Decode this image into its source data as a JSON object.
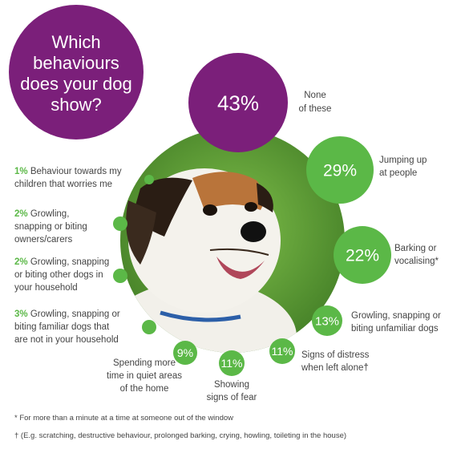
{
  "title_lines": [
    "Which",
    "behaviours",
    "does your dog",
    "show?"
  ],
  "colors": {
    "purple": "#7b1f7a",
    "green": "#5bb847",
    "text": "#444444",
    "grass": "#4e8a2e"
  },
  "photo": {
    "icon": "dog-photo",
    "description_hidden": true
  },
  "chart_data": {
    "type": "bubble",
    "title": "Which behaviours does your dog show?",
    "items": [
      {
        "label_lines": [
          "None",
          "of these"
        ],
        "value": 43,
        "value_text": "43%",
        "color": "#7b1f7a"
      },
      {
        "label_lines": [
          "Jumping up",
          "at people"
        ],
        "value": 29,
        "value_text": "29%",
        "color": "#5bb847"
      },
      {
        "label_lines": [
          "Barking or",
          "vocalising*"
        ],
        "value": 22,
        "value_text": "22%",
        "color": "#5bb847"
      },
      {
        "label_lines": [
          "Growling, snapping or",
          "biting unfamiliar dogs"
        ],
        "value": 13,
        "value_text": "13%",
        "color": "#5bb847"
      },
      {
        "label_lines": [
          "Signs of distress",
          "when left alone†"
        ],
        "value": 11,
        "value_text": "11%",
        "color": "#5bb847"
      },
      {
        "label_lines": [
          "Showing",
          "signs of fear"
        ],
        "value": 11,
        "value_text": "11%",
        "color": "#5bb847"
      },
      {
        "label_lines": [
          "Spending more",
          "time in quiet areas",
          "of the home"
        ],
        "value": 9,
        "value_text": "9%",
        "color": "#5bb847"
      },
      {
        "label_lines": [
          "Growling, snapping or",
          "biting familiar dogs that",
          "are not in your household"
        ],
        "value": 3,
        "value_text": "3%",
        "color": "#5bb847"
      },
      {
        "label_lines": [
          "Growling, snapping",
          "or biting other dogs in",
          "your household"
        ],
        "value": 2,
        "value_text": "2%",
        "color": "#5bb847"
      },
      {
        "label_lines": [
          "Growling,",
          "snapping or biting",
          "owners/carers"
        ],
        "value": 2,
        "value_text": "2%",
        "color": "#5bb847"
      },
      {
        "label_lines": [
          "Behaviour towards my",
          "children that worries me"
        ],
        "value": 1,
        "value_text": "1%",
        "color": "#5bb847"
      }
    ]
  },
  "footnotes": [
    "* For more than a minute at a time at someone  out of the window",
    "† (E.g. scratching, destructive behaviour, prolonged barking, crying, howling, toileting in the house)"
  ]
}
